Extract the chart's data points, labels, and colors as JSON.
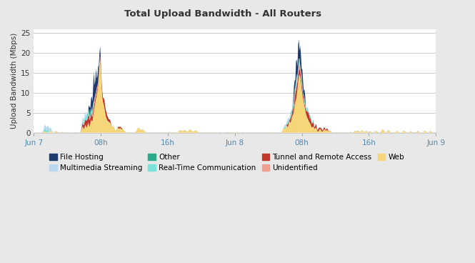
{
  "title": "Total Upload Bandwidth - All Routers",
  "ylabel": "Upload Bandwidth (Mbps)",
  "ylim": [
    0,
    26
  ],
  "yticks": [
    0,
    5,
    10,
    15,
    20,
    25
  ],
  "xtick_labels": [
    "Jun 7",
    "08h",
    "16h",
    "Jun 8",
    "08h",
    "16h",
    "Jun 9"
  ],
  "bg_color": "#e8e8e8",
  "plot_bg": "#ffffff",
  "grid_color": "#cccccc",
  "colors": {
    "File Hosting": "#1f3a6e",
    "Multimedia Streaming": "#b8d8f0",
    "Other": "#2aaa8a",
    "Real-Time Communication": "#7ae0d8",
    "Tunnel and Remote Access": "#c0392b",
    "Unidentified": "#f0a090",
    "Web": "#f5d77a"
  },
  "n_points": 576,
  "time_range": [
    0,
    2880
  ]
}
